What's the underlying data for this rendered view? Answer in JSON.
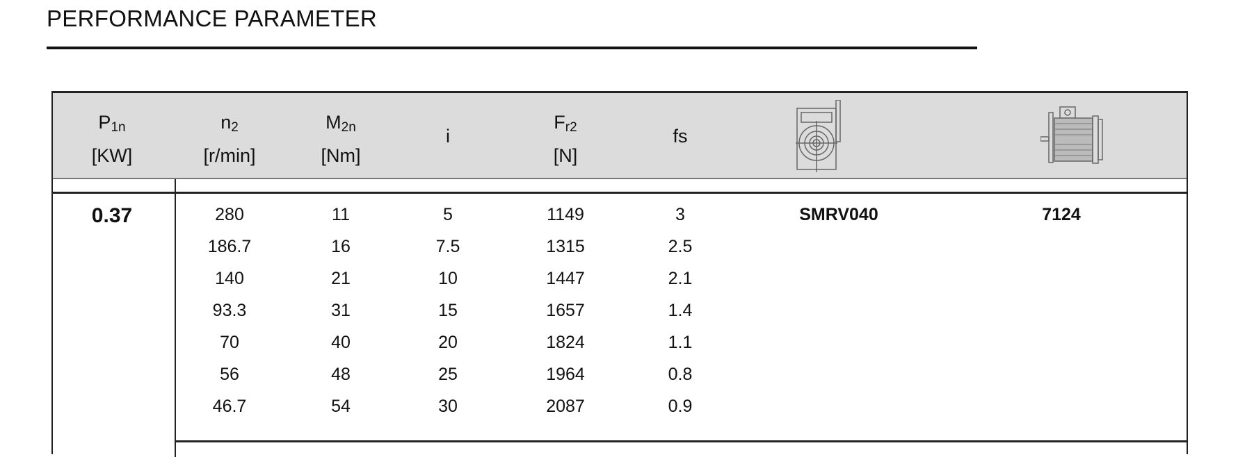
{
  "title": "PERFORMANCE PARAMETER",
  "headers": [
    {
      "main": "P",
      "sub": "1n",
      "unit": "[KW]"
    },
    {
      "main": "n",
      "sub": "2",
      "unit": "[r/min]"
    },
    {
      "main": "M",
      "sub": "2n",
      "unit": "[Nm]"
    },
    {
      "main": "i",
      "sub": "",
      "unit": ""
    },
    {
      "main": "F",
      "sub": "r2",
      "unit": "[N]"
    },
    {
      "main": "fs",
      "sub": "",
      "unit": ""
    }
  ],
  "icons": {
    "gearbox": "worm-gearbox-drawing",
    "motor": "electric-motor-drawing"
  },
  "power": "0.37",
  "gearbox_model": "SMRV040",
  "motor_model": "7124",
  "rows": [
    [
      "280",
      "11",
      "5",
      "1149",
      "3"
    ],
    [
      "186.7",
      "16",
      "7.5",
      "1315",
      "2.5"
    ],
    [
      "140",
      "21",
      "10",
      "1447",
      "2.1"
    ],
    [
      "93.3",
      "31",
      "15",
      "1657",
      "1.4"
    ],
    [
      "70",
      "40",
      "20",
      "1824",
      "1.1"
    ],
    [
      "56",
      "48",
      "25",
      "1964",
      "0.8"
    ],
    [
      "46.7",
      "54",
      "30",
      "2087",
      "0.9"
    ]
  ]
}
